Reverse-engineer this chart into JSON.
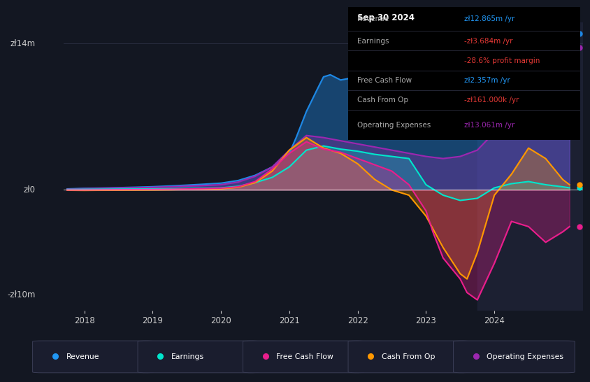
{
  "bg_color": "#131722",
  "plot_bg_color": "#131722",
  "y_label_top": "zł14m",
  "y_label_zero": "zł0",
  "y_label_bottom": "-zł10m",
  "x_ticks": [
    2018,
    2019,
    2020,
    2021,
    2022,
    2023,
    2024
  ],
  "ylim": [
    -11500000,
    16000000
  ],
  "xlim_left": 2017.7,
  "xlim_right": 2025.3,
  "legend": [
    {
      "label": "Revenue",
      "color": "#2196f3"
    },
    {
      "label": "Earnings",
      "color": "#00e5cc"
    },
    {
      "label": "Free Cash Flow",
      "color": "#e91e8c"
    },
    {
      "label": "Cash From Op",
      "color": "#ff9800"
    },
    {
      "label": "Operating Expenses",
      "color": "#9c27b0"
    }
  ],
  "info_box": {
    "date": "Sep 30 2024",
    "rows": [
      {
        "label": "Revenue",
        "value": "zł12.865m /yr",
        "vcolor": "#2196f3",
        "sub": null
      },
      {
        "label": "Earnings",
        "value": "-zł3.684m /yr",
        "vcolor": "#e53935",
        "sub": "-28.6% profit margin"
      },
      {
        "label": "Free Cash Flow",
        "value": "zł2.357m /yr",
        "vcolor": "#2196f3",
        "sub": null
      },
      {
        "label": "Cash From Op",
        "value": "-zł161.000k /yr",
        "vcolor": "#e53935",
        "sub": null
      },
      {
        "label": "Operating Expenses",
        "value": "zł13.061m /yr",
        "vcolor": "#9c27b0",
        "sub": null
      }
    ]
  },
  "revenue": {
    "color": "#1e88e5",
    "fill_color": "#1e88e5",
    "fill_alpha": 0.4,
    "x": [
      2017.75,
      2018.0,
      2018.25,
      2018.5,
      2018.75,
      2019.0,
      2019.25,
      2019.5,
      2019.75,
      2020.0,
      2020.25,
      2020.5,
      2020.75,
      2021.0,
      2021.1,
      2021.25,
      2021.4,
      2021.5,
      2021.6,
      2021.75,
      2022.0,
      2022.25,
      2022.5,
      2022.75,
      2023.0,
      2023.25,
      2023.5,
      2023.6,
      2023.75,
      2024.0,
      2024.25,
      2024.5,
      2024.75,
      2025.0,
      2025.1
    ],
    "y": [
      100000,
      150000,
      180000,
      220000,
      260000,
      310000,
      380000,
      460000,
      550000,
      650000,
      900000,
      1400000,
      2200000,
      3500000,
      5000000,
      7500000,
      9500000,
      10800000,
      11000000,
      10500000,
      10800000,
      10200000,
      9400000,
      8800000,
      8500000,
      8200000,
      7200000,
      7000000,
      7400000,
      9500000,
      11500000,
      13200000,
      14500000,
      14800000,
      14900000
    ]
  },
  "earnings": {
    "color": "#00e5cc",
    "fill_color": "#00e5cc",
    "fill_alpha": 0.25,
    "x": [
      2017.75,
      2018.0,
      2018.25,
      2018.5,
      2018.75,
      2019.0,
      2019.25,
      2019.5,
      2019.75,
      2020.0,
      2020.25,
      2020.5,
      2020.75,
      2021.0,
      2021.25,
      2021.5,
      2021.75,
      2022.0,
      2022.25,
      2022.5,
      2022.75,
      2023.0,
      2023.25,
      2023.5,
      2023.75,
      2024.0,
      2024.25,
      2024.5,
      2024.75,
      2025.0,
      2025.1
    ],
    "y": [
      50000,
      60000,
      70000,
      80000,
      90000,
      100000,
      120000,
      140000,
      160000,
      200000,
      350000,
      700000,
      1200000,
      2200000,
      3800000,
      4200000,
      3900000,
      3700000,
      3400000,
      3200000,
      3000000,
      500000,
      -500000,
      -1000000,
      -800000,
      200000,
      600000,
      800000,
      500000,
      300000,
      200000
    ]
  },
  "fcf": {
    "color": "#e91e8c",
    "fill_color": "#e91e8c",
    "fill_alpha": 0.3,
    "x": [
      2017.75,
      2018.0,
      2018.25,
      2018.5,
      2018.75,
      2019.0,
      2019.25,
      2019.5,
      2019.75,
      2020.0,
      2020.25,
      2020.5,
      2020.75,
      2021.0,
      2021.25,
      2021.5,
      2021.75,
      2022.0,
      2022.25,
      2022.5,
      2022.75,
      2023.0,
      2023.1,
      2023.25,
      2023.5,
      2023.6,
      2023.75,
      2024.0,
      2024.25,
      2024.5,
      2024.75,
      2025.0,
      2025.1
    ],
    "y": [
      0,
      0,
      10000,
      20000,
      30000,
      40000,
      60000,
      90000,
      120000,
      170000,
      300000,
      800000,
      2000000,
      3500000,
      4600000,
      3900000,
      3600000,
      3000000,
      2400000,
      1800000,
      500000,
      -2000000,
      -4000000,
      -6500000,
      -8500000,
      -9800000,
      -10500000,
      -7000000,
      -3000000,
      -3500000,
      -5000000,
      -4000000,
      -3500000
    ]
  },
  "cashop": {
    "color": "#ff9800",
    "fill_color": "#ff9800",
    "fill_alpha": 0.3,
    "x": [
      2017.75,
      2018.0,
      2018.25,
      2018.5,
      2018.75,
      2019.0,
      2019.25,
      2019.5,
      2019.75,
      2020.0,
      2020.25,
      2020.5,
      2020.75,
      2021.0,
      2021.25,
      2021.5,
      2021.75,
      2022.0,
      2022.25,
      2022.5,
      2022.75,
      2023.0,
      2023.25,
      2023.5,
      2023.6,
      2023.75,
      2024.0,
      2024.25,
      2024.5,
      2024.75,
      2025.0,
      2025.1
    ],
    "y": [
      -30000,
      -40000,
      -30000,
      -20000,
      -10000,
      0,
      20000,
      50000,
      80000,
      120000,
      250000,
      700000,
      1800000,
      3800000,
      5000000,
      4000000,
      3500000,
      2500000,
      1000000,
      0,
      -500000,
      -2500000,
      -5500000,
      -8000000,
      -8500000,
      -6000000,
      -500000,
      1500000,
      4000000,
      3000000,
      1000000,
      500000
    ]
  },
  "opex": {
    "color": "#9c27b0",
    "fill_color": "#9c27b0",
    "fill_alpha": 0.3,
    "x": [
      2017.75,
      2018.0,
      2018.25,
      2018.5,
      2018.75,
      2019.0,
      2019.25,
      2019.5,
      2019.75,
      2020.0,
      2020.25,
      2020.5,
      2020.75,
      2021.0,
      2021.25,
      2021.5,
      2021.75,
      2022.0,
      2022.25,
      2022.5,
      2022.75,
      2023.0,
      2023.25,
      2023.5,
      2023.75,
      2024.0,
      2024.25,
      2024.5,
      2024.75,
      2025.0,
      2025.1
    ],
    "y": [
      80000,
      120000,
      150000,
      180000,
      210000,
      250000,
      300000,
      360000,
      420000,
      500000,
      750000,
      1300000,
      2200000,
      3800000,
      5200000,
      5000000,
      4700000,
      4400000,
      4100000,
      3800000,
      3500000,
      3200000,
      3000000,
      3200000,
      3800000,
      5500000,
      8000000,
      11000000,
      13200000,
      13500000,
      13600000
    ]
  },
  "highlight_x_start": 2023.75,
  "highlight_x_end": 2025.3
}
